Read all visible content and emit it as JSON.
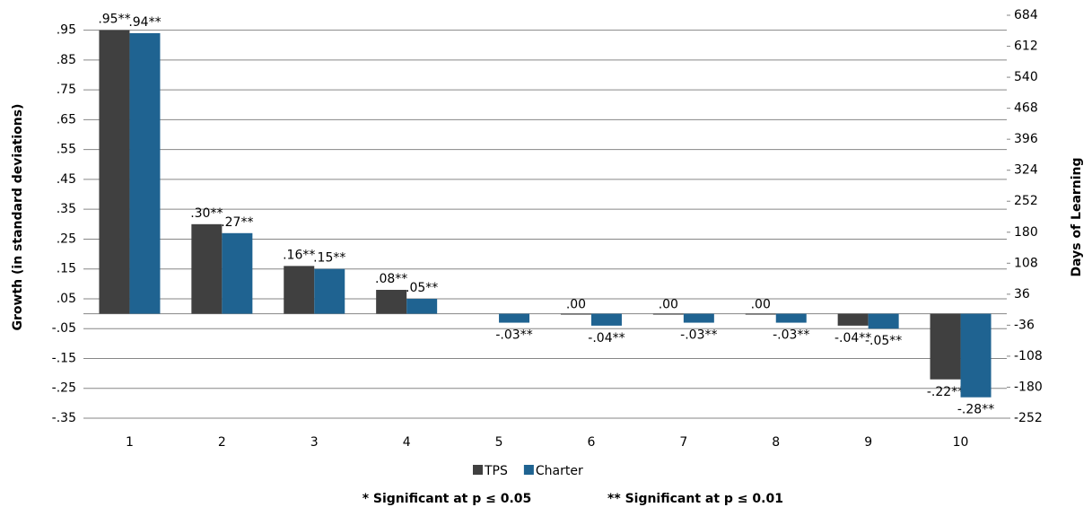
{
  "chart_data": {
    "type": "bar",
    "y_label": "Growth (in standard deviations)",
    "y2_label": "Days of Learning",
    "categories": [
      "1",
      "2",
      "3",
      "4",
      "5",
      "6",
      "7",
      "8",
      "9",
      "10"
    ],
    "series": [
      {
        "name": "TPS",
        "color": "#404040",
        "values": [
          0.95,
          0.3,
          0.16,
          0.08,
          null,
          0.0,
          0.0,
          0.0,
          -0.04,
          -0.22
        ],
        "value_labels": [
          ".95**",
          ".30**",
          ".16**",
          ".08**",
          null,
          ".00",
          ".00",
          ".00",
          "-.04**",
          "-.22**"
        ]
      },
      {
        "name": "Charter",
        "color": "#1f6391",
        "values": [
          0.94,
          0.27,
          0.15,
          0.05,
          -0.03,
          -0.04,
          -0.03,
          -0.03,
          -0.05,
          -0.28
        ],
        "value_labels": [
          ".94**",
          ".27**",
          ".15**",
          ".05**",
          "-.03**",
          "-.04**",
          "-.03**",
          "-.03**",
          "-.05**",
          "-.28**"
        ]
      }
    ],
    "ylim": [
      -0.35,
      1.0
    ],
    "yticks": [
      {
        "value": -0.35,
        "label": "-.35"
      },
      {
        "value": -0.25,
        "label": "-.25"
      },
      {
        "value": -0.15,
        "label": "-.15"
      },
      {
        "value": -0.05,
        "label": "-.05"
      },
      {
        "value": 0.05,
        "label": ".05"
      },
      {
        "value": 0.15,
        "label": ".15"
      },
      {
        "value": 0.25,
        "label": ".25"
      },
      {
        "value": 0.35,
        "label": ".35"
      },
      {
        "value": 0.45,
        "label": ".45"
      },
      {
        "value": 0.55,
        "label": ".55"
      },
      {
        "value": 0.65,
        "label": ".65"
      },
      {
        "value": 0.75,
        "label": ".75"
      },
      {
        "value": 0.85,
        "label": ".85"
      },
      {
        "value": 0.95,
        "label": ".95"
      }
    ],
    "y2lim": [
      -252,
      684
    ],
    "y2ticks": [
      -252,
      -180,
      -108,
      -36,
      36,
      108,
      180,
      252,
      324,
      396,
      468,
      540,
      612,
      684
    ],
    "grid": true,
    "legend": "bottom",
    "annotations": [
      "* Significant at p ≤ 0.05",
      "** Significant at p ≤ 0.01"
    ]
  }
}
